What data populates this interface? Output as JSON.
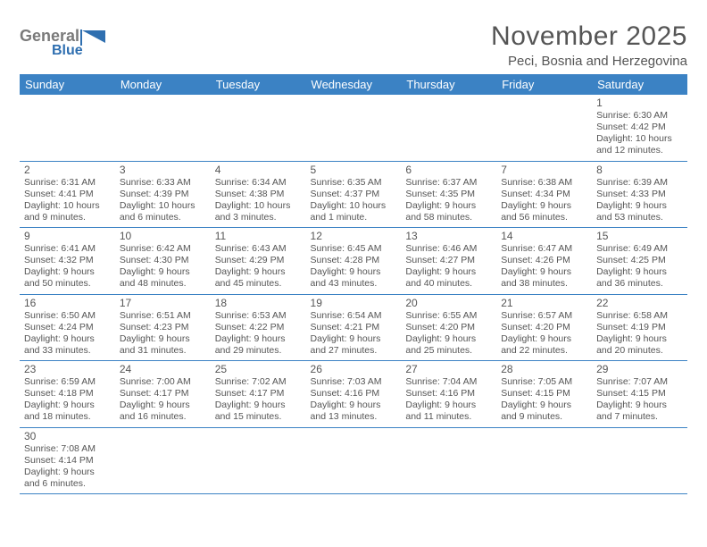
{
  "brand": {
    "word1": "General",
    "word2": "Blue"
  },
  "colors": {
    "headerBg": "#3b82c4",
    "headerText": "#ffffff",
    "border": "#3b82c4",
    "text": "#555555",
    "brandGray": "#7a7a7a",
    "brandBlue": "#2f6fb0"
  },
  "title": "November 2025",
  "location": "Peci, Bosnia and Herzegovina",
  "weekdays": [
    "Sunday",
    "Monday",
    "Tuesday",
    "Wednesday",
    "Thursday",
    "Friday",
    "Saturday"
  ],
  "weeks": [
    [
      null,
      null,
      null,
      null,
      null,
      null,
      {
        "n": "1",
        "sr": "Sunrise: 6:30 AM",
        "ss": "Sunset: 4:42 PM",
        "dl1": "Daylight: 10 hours",
        "dl2": "and 12 minutes."
      }
    ],
    [
      {
        "n": "2",
        "sr": "Sunrise: 6:31 AM",
        "ss": "Sunset: 4:41 PM",
        "dl1": "Daylight: 10 hours",
        "dl2": "and 9 minutes."
      },
      {
        "n": "3",
        "sr": "Sunrise: 6:33 AM",
        "ss": "Sunset: 4:39 PM",
        "dl1": "Daylight: 10 hours",
        "dl2": "and 6 minutes."
      },
      {
        "n": "4",
        "sr": "Sunrise: 6:34 AM",
        "ss": "Sunset: 4:38 PM",
        "dl1": "Daylight: 10 hours",
        "dl2": "and 3 minutes."
      },
      {
        "n": "5",
        "sr": "Sunrise: 6:35 AM",
        "ss": "Sunset: 4:37 PM",
        "dl1": "Daylight: 10 hours",
        "dl2": "and 1 minute."
      },
      {
        "n": "6",
        "sr": "Sunrise: 6:37 AM",
        "ss": "Sunset: 4:35 PM",
        "dl1": "Daylight: 9 hours",
        "dl2": "and 58 minutes."
      },
      {
        "n": "7",
        "sr": "Sunrise: 6:38 AM",
        "ss": "Sunset: 4:34 PM",
        "dl1": "Daylight: 9 hours",
        "dl2": "and 56 minutes."
      },
      {
        "n": "8",
        "sr": "Sunrise: 6:39 AM",
        "ss": "Sunset: 4:33 PM",
        "dl1": "Daylight: 9 hours",
        "dl2": "and 53 minutes."
      }
    ],
    [
      {
        "n": "9",
        "sr": "Sunrise: 6:41 AM",
        "ss": "Sunset: 4:32 PM",
        "dl1": "Daylight: 9 hours",
        "dl2": "and 50 minutes."
      },
      {
        "n": "10",
        "sr": "Sunrise: 6:42 AM",
        "ss": "Sunset: 4:30 PM",
        "dl1": "Daylight: 9 hours",
        "dl2": "and 48 minutes."
      },
      {
        "n": "11",
        "sr": "Sunrise: 6:43 AM",
        "ss": "Sunset: 4:29 PM",
        "dl1": "Daylight: 9 hours",
        "dl2": "and 45 minutes."
      },
      {
        "n": "12",
        "sr": "Sunrise: 6:45 AM",
        "ss": "Sunset: 4:28 PM",
        "dl1": "Daylight: 9 hours",
        "dl2": "and 43 minutes."
      },
      {
        "n": "13",
        "sr": "Sunrise: 6:46 AM",
        "ss": "Sunset: 4:27 PM",
        "dl1": "Daylight: 9 hours",
        "dl2": "and 40 minutes."
      },
      {
        "n": "14",
        "sr": "Sunrise: 6:47 AM",
        "ss": "Sunset: 4:26 PM",
        "dl1": "Daylight: 9 hours",
        "dl2": "and 38 minutes."
      },
      {
        "n": "15",
        "sr": "Sunrise: 6:49 AM",
        "ss": "Sunset: 4:25 PM",
        "dl1": "Daylight: 9 hours",
        "dl2": "and 36 minutes."
      }
    ],
    [
      {
        "n": "16",
        "sr": "Sunrise: 6:50 AM",
        "ss": "Sunset: 4:24 PM",
        "dl1": "Daylight: 9 hours",
        "dl2": "and 33 minutes."
      },
      {
        "n": "17",
        "sr": "Sunrise: 6:51 AM",
        "ss": "Sunset: 4:23 PM",
        "dl1": "Daylight: 9 hours",
        "dl2": "and 31 minutes."
      },
      {
        "n": "18",
        "sr": "Sunrise: 6:53 AM",
        "ss": "Sunset: 4:22 PM",
        "dl1": "Daylight: 9 hours",
        "dl2": "and 29 minutes."
      },
      {
        "n": "19",
        "sr": "Sunrise: 6:54 AM",
        "ss": "Sunset: 4:21 PM",
        "dl1": "Daylight: 9 hours",
        "dl2": "and 27 minutes."
      },
      {
        "n": "20",
        "sr": "Sunrise: 6:55 AM",
        "ss": "Sunset: 4:20 PM",
        "dl1": "Daylight: 9 hours",
        "dl2": "and 25 minutes."
      },
      {
        "n": "21",
        "sr": "Sunrise: 6:57 AM",
        "ss": "Sunset: 4:20 PM",
        "dl1": "Daylight: 9 hours",
        "dl2": "and 22 minutes."
      },
      {
        "n": "22",
        "sr": "Sunrise: 6:58 AM",
        "ss": "Sunset: 4:19 PM",
        "dl1": "Daylight: 9 hours",
        "dl2": "and 20 minutes."
      }
    ],
    [
      {
        "n": "23",
        "sr": "Sunrise: 6:59 AM",
        "ss": "Sunset: 4:18 PM",
        "dl1": "Daylight: 9 hours",
        "dl2": "and 18 minutes."
      },
      {
        "n": "24",
        "sr": "Sunrise: 7:00 AM",
        "ss": "Sunset: 4:17 PM",
        "dl1": "Daylight: 9 hours",
        "dl2": "and 16 minutes."
      },
      {
        "n": "25",
        "sr": "Sunrise: 7:02 AM",
        "ss": "Sunset: 4:17 PM",
        "dl1": "Daylight: 9 hours",
        "dl2": "and 15 minutes."
      },
      {
        "n": "26",
        "sr": "Sunrise: 7:03 AM",
        "ss": "Sunset: 4:16 PM",
        "dl1": "Daylight: 9 hours",
        "dl2": "and 13 minutes."
      },
      {
        "n": "27",
        "sr": "Sunrise: 7:04 AM",
        "ss": "Sunset: 4:16 PM",
        "dl1": "Daylight: 9 hours",
        "dl2": "and 11 minutes."
      },
      {
        "n": "28",
        "sr": "Sunrise: 7:05 AM",
        "ss": "Sunset: 4:15 PM",
        "dl1": "Daylight: 9 hours",
        "dl2": "and 9 minutes."
      },
      {
        "n": "29",
        "sr": "Sunrise: 7:07 AM",
        "ss": "Sunset: 4:15 PM",
        "dl1": "Daylight: 9 hours",
        "dl2": "and 7 minutes."
      }
    ],
    [
      {
        "n": "30",
        "sr": "Sunrise: 7:08 AM",
        "ss": "Sunset: 4:14 PM",
        "dl1": "Daylight: 9 hours",
        "dl2": "and 6 minutes."
      },
      null,
      null,
      null,
      null,
      null,
      null
    ]
  ]
}
